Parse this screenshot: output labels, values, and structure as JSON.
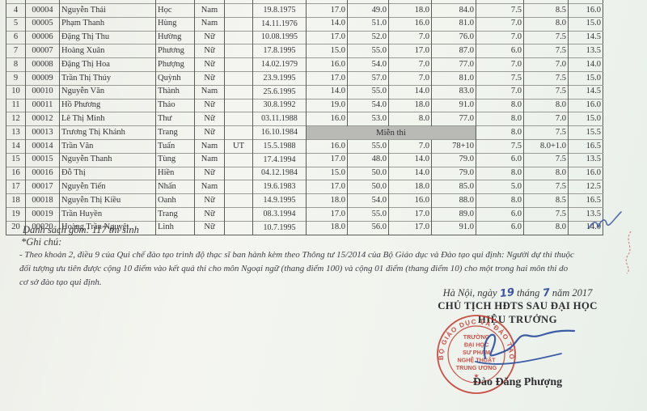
{
  "document": {
    "summary": "Danh sách gồm: 117 thí sinh",
    "notes_label": "*Ghi chú:",
    "note_lines": [
      "- Theo khoản 2, điều 9 của Qui chế đào tạo trình độ thạc sĩ ban hành kèm theo Thông tư 15/2014 của Bộ Giáo dục và Đào tạo qui định: Người dự thi thuộc",
      "đối tượng ưu tiên được cộng 10 điểm vào kết quả thi cho môn Ngoại ngữ (thang điểm 100) và cộng 01 điểm (thang điểm 10) cho một trong hai môn thi do",
      "cơ sở đào tạo qui định."
    ],
    "date_line": {
      "prefix": "Hà Nội, ngày",
      "day": "19",
      "middle": "tháng",
      "month": "7",
      "suffix": "năm 2017"
    },
    "signature_block": {
      "title1": "CHỦ TỊCH HĐTS SAU ĐẠI HỌC",
      "title2": "HIỆU TRƯỞNG",
      "signer_name": "Đào Đăng Phượng",
      "stamp": {
        "ring_text": "BỘ GIÁO DỤC VÀ ĐÀO TẠO",
        "center_lines": [
          "TRƯỜNG",
          "ĐẠI HỌC",
          "SƯ PHẠM",
          "NGHỆ THUẬT",
          "TRUNG ƯƠNG"
        ],
        "star": "★"
      }
    }
  },
  "colors": {
    "stamp_red": "#c5392e",
    "ink_blue": "#2d4fa0",
    "highlight_gray": "#b9b9b6"
  },
  "table": {
    "rows": [
      {
        "stt": "4",
        "code": "00004",
        "family": "Nguyễn Thái",
        "given": "Học",
        "gender": "Nam",
        "priority": "",
        "dob": "19.8.1975",
        "scores": [
          "17.0",
          "49.0",
          "18.0",
          "84.0",
          "7.5",
          "8.5",
          "16.0"
        ]
      },
      {
        "stt": "5",
        "code": "00005",
        "family": "Phạm Thanh",
        "given": "Hùng",
        "gender": "Nam",
        "priority": "",
        "dob": "14.11.1976",
        "scores": [
          "14.0",
          "51.0",
          "16.0",
          "81.0",
          "7.0",
          "8.0",
          "15.0"
        ]
      },
      {
        "stt": "6",
        "code": "00006",
        "family": "Đặng Thị Thu",
        "given": "Hường",
        "gender": "Nữ",
        "priority": "",
        "dob": "10.08.1995",
        "scores": [
          "17.0",
          "52.0",
          "7.0",
          "76.0",
          "7.0",
          "7.5",
          "14.5"
        ]
      },
      {
        "stt": "7",
        "code": "00007",
        "family": "Hoàng Xuân",
        "given": "Phương",
        "gender": "Nữ",
        "priority": "",
        "dob": "17.8.1995",
        "scores": [
          "15.0",
          "55.0",
          "17.0",
          "87.0",
          "6.0",
          "7.5",
          "13.5"
        ]
      },
      {
        "stt": "8",
        "code": "00008",
        "family": "Đặng Thị Hoa",
        "given": "Phượng",
        "gender": "Nữ",
        "priority": "",
        "dob": "14.02.1979",
        "scores": [
          "16.0",
          "54.0",
          "7.0",
          "77.0",
          "7.0",
          "7.0",
          "14.0"
        ]
      },
      {
        "stt": "9",
        "code": "00009",
        "family": "Trần Thị Thúy",
        "given": "Quỳnh",
        "gender": "Nữ",
        "priority": "",
        "dob": "23.9.1995",
        "scores": [
          "17.0",
          "57.0",
          "7.0",
          "81.0",
          "7.5",
          "7.5",
          "15.0"
        ]
      },
      {
        "stt": "10",
        "code": "00010",
        "family": "Nguyễn Văn",
        "given": "Thành",
        "gender": "Nam",
        "priority": "",
        "dob": "25.6.1995",
        "scores": [
          "14.0",
          "55.0",
          "14.0",
          "83.0",
          "7.0",
          "7.5",
          "14.5"
        ]
      },
      {
        "stt": "11",
        "code": "00011",
        "family": "Hồ Phương",
        "given": "Thảo",
        "gender": "Nữ",
        "priority": "",
        "dob": "30.8.1992",
        "scores": [
          "19.0",
          "54.0",
          "18.0",
          "91.0",
          "8.0",
          "8.0",
          "16.0"
        ]
      },
      {
        "stt": "12",
        "code": "00012",
        "family": "Lê Thị Minh",
        "given": "Thư",
        "gender": "Nữ",
        "priority": "",
        "dob": "03.11.1988",
        "scores": [
          "16.0",
          "53.0",
          "8.0",
          "77.0",
          "8.0",
          "7.0",
          "15.0"
        ]
      },
      {
        "stt": "13",
        "code": "00013",
        "family": "Trương Thị Khánh",
        "given": "Trang",
        "gender": "Nữ",
        "priority": "",
        "dob": "16.10.1984",
        "merged": "Miễn thi",
        "scores": [
          "8.0",
          "7.5",
          "15.5"
        ]
      },
      {
        "stt": "14",
        "code": "00014",
        "family": "Trần Văn",
        "given": "Tuấn",
        "gender": "Nam",
        "priority": "UT",
        "dob": "15.5.1988",
        "scores": [
          "16.0",
          "55.0",
          "7.0",
          "78+10",
          "7.5",
          "8.0+1.0",
          "16.5"
        ]
      },
      {
        "stt": "15",
        "code": "00015",
        "family": "Nguyễn Thanh",
        "given": "Tùng",
        "gender": "Nam",
        "priority": "",
        "dob": "17.4.1994",
        "scores": [
          "17.0",
          "48.0",
          "14.0",
          "79.0",
          "6.0",
          "7.5",
          "13.5"
        ]
      },
      {
        "stt": "16",
        "code": "00016",
        "family": "Đỗ Thị",
        "given": "Hiền",
        "gender": "Nữ",
        "priority": "",
        "dob": "04.12.1984",
        "scores": [
          "15.0",
          "50.0",
          "14.0",
          "79.0",
          "8.0",
          "8.0",
          "16.0"
        ]
      },
      {
        "stt": "17",
        "code": "00017",
        "family": "Nguyễn Tiến",
        "given": "Nhấn",
        "gender": "Nam",
        "priority": "",
        "dob": "19.6.1983",
        "scores": [
          "17.0",
          "50.0",
          "18.0",
          "85.0",
          "5.0",
          "7.5",
          "12.5"
        ]
      },
      {
        "stt": "18",
        "code": "00018",
        "family": "Nguyễn Thị Kiều",
        "given": "Oanh",
        "gender": "Nữ",
        "priority": "",
        "dob": "14.9.1995",
        "scores": [
          "18.0",
          "54.0",
          "16.0",
          "88.0",
          "8.0",
          "8.5",
          "16.5"
        ]
      },
      {
        "stt": "19",
        "code": "00019",
        "family": "Trần Huyền",
        "given": "Trang",
        "gender": "Nữ",
        "priority": "",
        "dob": "08.3.1994",
        "scores": [
          "17.0",
          "55.0",
          "17.0",
          "89.0",
          "6.0",
          "7.5",
          "13.5"
        ]
      },
      {
        "stt": "20",
        "code": "00020",
        "family": "Hoàng Trần Nguyệt",
        "given": "Linh",
        "gender": "Nữ",
        "priority": "",
        "dob": "10.7.1995",
        "scores": [
          "18.0",
          "56.0",
          "17.0",
          "91.0",
          "6.0",
          "8.0",
          "14.0"
        ]
      }
    ]
  }
}
